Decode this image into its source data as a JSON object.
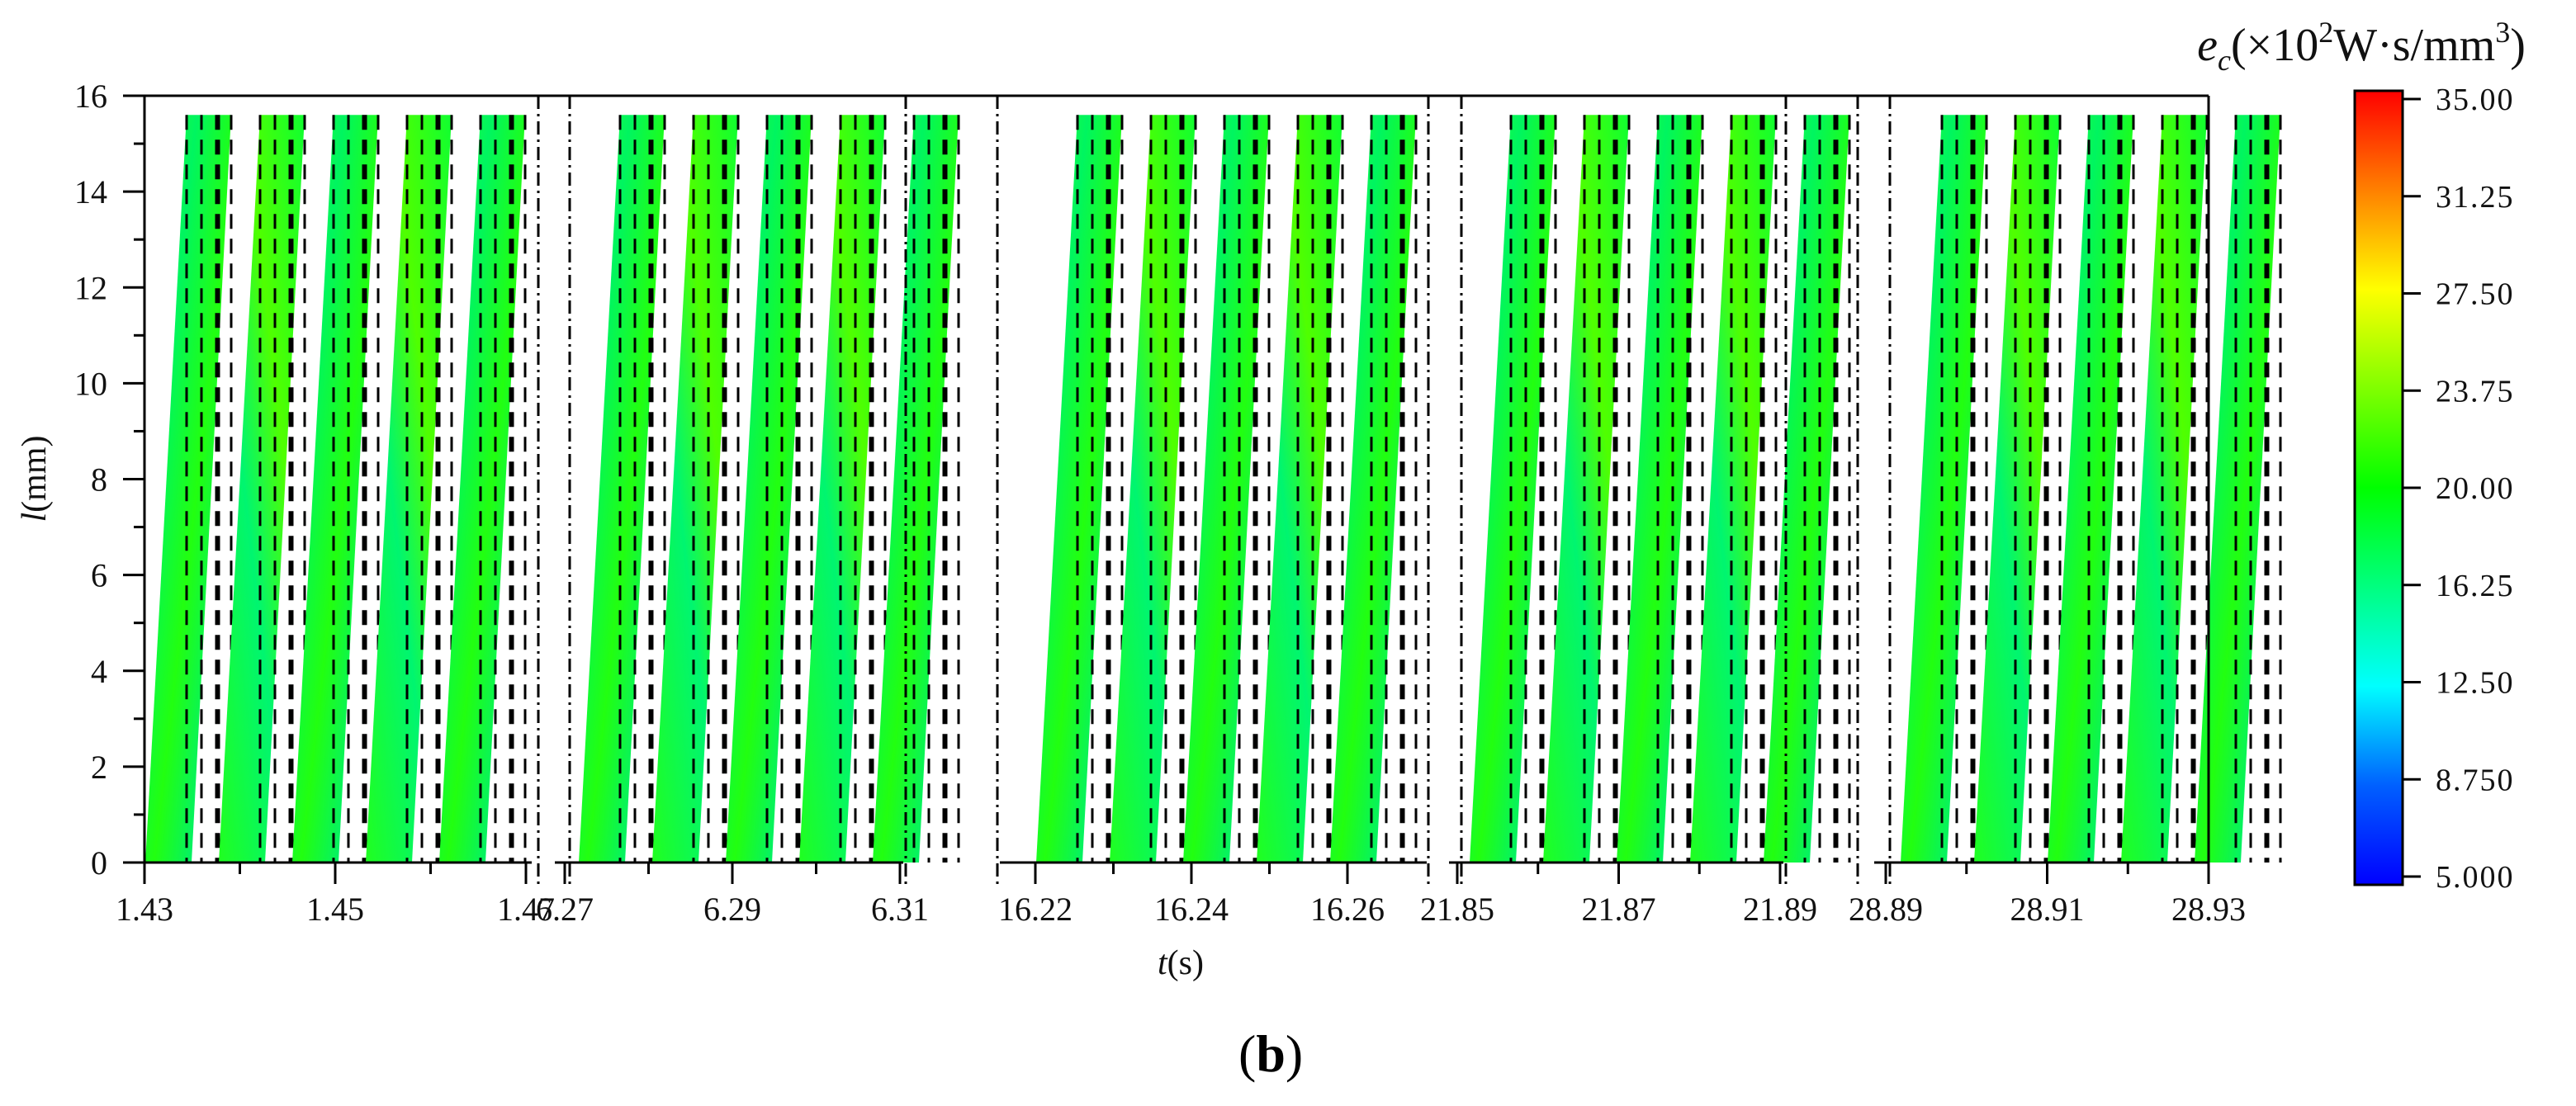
{
  "chart_data": {
    "type": "heatmap",
    "title": "",
    "caption": "(b)",
    "xlabel": "t(s)",
    "xlabel_italic": "t",
    "xlabel_unit": "(s)",
    "ylabel": "l(mm)",
    "ylabel_italic": "l",
    "ylabel_unit": "(mm)",
    "ylim": [
      0,
      16
    ],
    "yticks": [
      0,
      2,
      4,
      6,
      8,
      10,
      12,
      14,
      16
    ],
    "grid": false,
    "broken_x_axis": true,
    "segments": [
      {
        "xlim": [
          1.43,
          1.47
        ],
        "xticks": [
          "1.43",
          "1.45",
          "1.47"
        ],
        "stripes": 5
      },
      {
        "xlim": [
          6.27,
          6.31
        ],
        "xticks": [
          "6.27",
          "6.29",
          "6.31"
        ],
        "stripes": 5
      },
      {
        "xlim": [
          16.22,
          16.26
        ],
        "xticks": [
          "16.22",
          "16.24",
          "16.26"
        ],
        "stripes": 5
      },
      {
        "xlim": [
          21.85,
          21.89
        ],
        "xticks": [
          "21.85",
          "21.87",
          "21.89"
        ],
        "stripes": 5
      },
      {
        "xlim": [
          28.89,
          28.93
        ],
        "xticks": [
          "28.89",
          "28.91",
          "28.93"
        ],
        "stripes": 5
      }
    ],
    "stripe_value_range": [
      14,
      24
    ],
    "stripe_dominant_value": 20,
    "stripe_top_l": 15.6,
    "colorbar": {
      "title": "e_c(×10^2 W·s/mm^3)",
      "min": 5.0,
      "max": 35.0,
      "ticks": [
        "35.00",
        "31.25",
        "27.50",
        "23.75",
        "20.00",
        "16.25",
        "12.50",
        "8.750",
        "5.000"
      ],
      "colormap": [
        "#0000ff",
        "#0080ff",
        "#00ffff",
        "#00ff80",
        "#00ff00",
        "#80ff00",
        "#ffff00",
        "#ff8000",
        "#ff0000"
      ]
    }
  },
  "labels": {
    "cb_title_e": "e",
    "cb_title_c": "c",
    "cb_title_mid": "(×10",
    "cb_title_2": "2",
    "cb_title_unit": "W·s/mm",
    "cb_title_3": "3",
    "cb_title_close": ")",
    "caption_open": "(",
    "caption_b": "b",
    "caption_close": ")"
  }
}
